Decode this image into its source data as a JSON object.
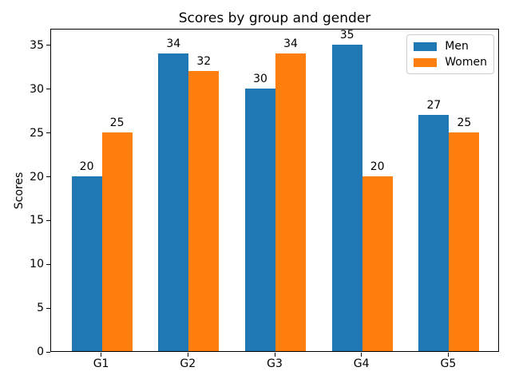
{
  "chart_data": {
    "type": "bar",
    "title": "Scores by group and gender",
    "xlabel": "",
    "ylabel": "Scores",
    "categories": [
      "G1",
      "G2",
      "G3",
      "G4",
      "G5"
    ],
    "series": [
      {
        "name": "Men",
        "color": "#1f77b4",
        "values": [
          20,
          34,
          30,
          35,
          27
        ]
      },
      {
        "name": "Women",
        "color": "#ff7f0e",
        "values": [
          25,
          32,
          34,
          20,
          25
        ]
      }
    ],
    "bar_value_labels": true,
    "yticks": [
      0,
      5,
      10,
      15,
      20,
      25,
      30,
      35
    ],
    "ylim": [
      0,
      36.9
    ],
    "xlim": [
      -0.585,
      4.585
    ],
    "bar_width": 0.35,
    "legend_position": "upper right",
    "grid": false
  }
}
